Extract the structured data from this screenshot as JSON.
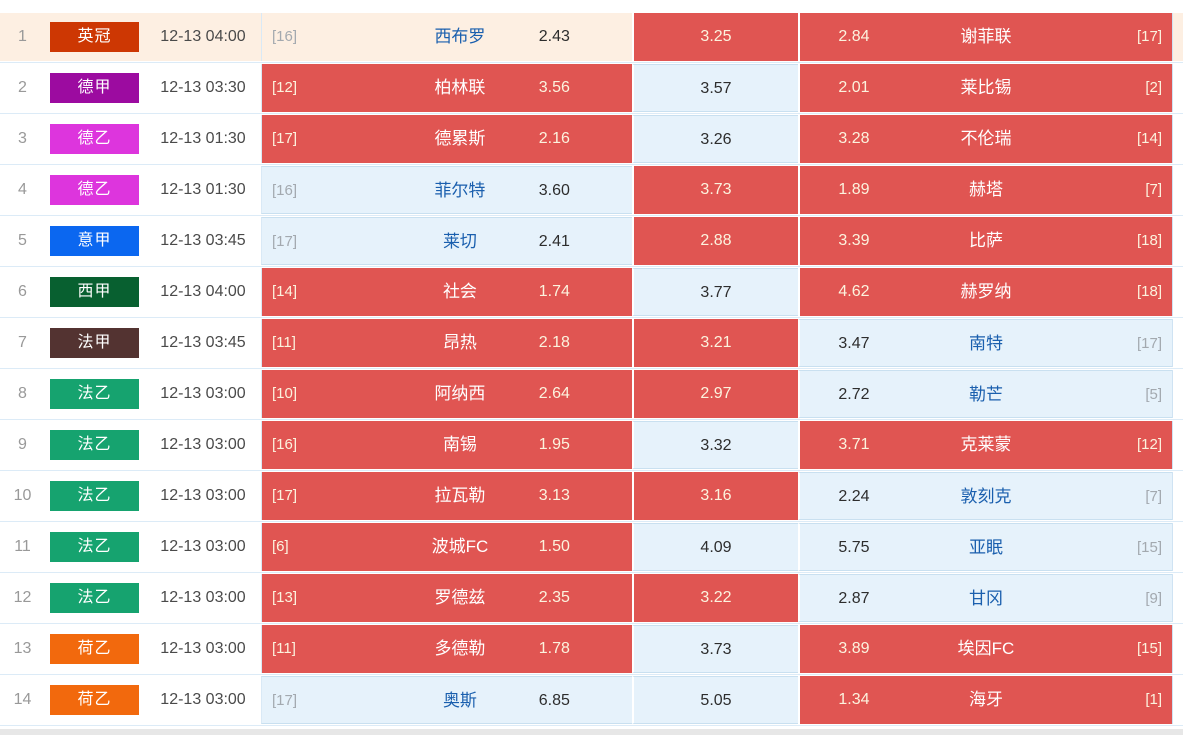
{
  "colors": {
    "cell_red": "#e05552",
    "cell_light_blue": "#e6f2fb",
    "row_highlight_cream": "#fdefe2",
    "team_link_blue": "#1a5fae",
    "text_on_red": "#fcf3de",
    "rank_gray": "#a3a9af",
    "separator_blue": "#dcebf7"
  },
  "table": {
    "rows": [
      {
        "num": "1",
        "league": "英冠",
        "league_color": "#cd3703",
        "time": "12-13 04:00",
        "highlight": true,
        "home": {
          "rank": "[16]",
          "team": "西布罗",
          "odds": "2.43",
          "style": "cream"
        },
        "draw": {
          "odds": "3.25",
          "style": "red"
        },
        "away": {
          "odds": "2.84",
          "team": "谢菲联",
          "rank": "[17]",
          "style": "red"
        }
      },
      {
        "num": "2",
        "league": "德甲",
        "league_color": "#9c0ba0",
        "time": "12-13 03:30",
        "highlight": false,
        "home": {
          "rank": "[12]",
          "team": "柏林联",
          "odds": "3.56",
          "style": "red"
        },
        "draw": {
          "odds": "3.57",
          "style": "light"
        },
        "away": {
          "odds": "2.01",
          "team": "莱比锡",
          "rank": "[2]",
          "style": "red"
        }
      },
      {
        "num": "3",
        "league": "德乙",
        "league_color": "#dd35dd",
        "time": "12-13 01:30",
        "highlight": false,
        "home": {
          "rank": "[17]",
          "team": "德累斯",
          "odds": "2.16",
          "style": "red"
        },
        "draw": {
          "odds": "3.26",
          "style": "light"
        },
        "away": {
          "odds": "3.28",
          "team": "不伦瑞",
          "rank": "[14]",
          "style": "red"
        }
      },
      {
        "num": "4",
        "league": "德乙",
        "league_color": "#dd35dd",
        "time": "12-13 01:30",
        "highlight": false,
        "home": {
          "rank": "[16]",
          "team": "菲尔特",
          "odds": "3.60",
          "style": "light"
        },
        "draw": {
          "odds": "3.73",
          "style": "red"
        },
        "away": {
          "odds": "1.89",
          "team": "赫塔",
          "rank": "[7]",
          "style": "red"
        }
      },
      {
        "num": "5",
        "league": "意甲",
        "league_color": "#0b67f0",
        "time": "12-13 03:45",
        "highlight": false,
        "home": {
          "rank": "[17]",
          "team": "莱切",
          "odds": "2.41",
          "style": "light"
        },
        "draw": {
          "odds": "2.88",
          "style": "red"
        },
        "away": {
          "odds": "3.39",
          "team": "比萨",
          "rank": "[18]",
          "style": "red"
        }
      },
      {
        "num": "6",
        "league": "西甲",
        "league_color": "#086030",
        "time": "12-13 04:00",
        "highlight": false,
        "home": {
          "rank": "[14]",
          "team": "社会",
          "odds": "1.74",
          "style": "red"
        },
        "draw": {
          "odds": "3.77",
          "style": "light"
        },
        "away": {
          "odds": "4.62",
          "team": "赫罗纳",
          "rank": "[18]",
          "style": "red"
        }
      },
      {
        "num": "7",
        "league": "法甲",
        "league_color": "#533331",
        "time": "12-13 03:45",
        "highlight": false,
        "home": {
          "rank": "[11]",
          "team": "昂热",
          "odds": "2.18",
          "style": "red"
        },
        "draw": {
          "odds": "3.21",
          "style": "red"
        },
        "away": {
          "odds": "3.47",
          "team": "南特",
          "rank": "[17]",
          "style": "light"
        }
      },
      {
        "num": "8",
        "league": "法乙",
        "league_color": "#16a36f",
        "time": "12-13 03:00",
        "highlight": false,
        "home": {
          "rank": "[10]",
          "team": "阿纳西",
          "odds": "2.64",
          "style": "red"
        },
        "draw": {
          "odds": "2.97",
          "style": "red"
        },
        "away": {
          "odds": "2.72",
          "team": "勒芒",
          "rank": "[5]",
          "style": "light"
        }
      },
      {
        "num": "9",
        "league": "法乙",
        "league_color": "#16a36f",
        "time": "12-13 03:00",
        "highlight": false,
        "home": {
          "rank": "[16]",
          "team": "南锡",
          "odds": "1.95",
          "style": "red"
        },
        "draw": {
          "odds": "3.32",
          "style": "light"
        },
        "away": {
          "odds": "3.71",
          "team": "克莱蒙",
          "rank": "[12]",
          "style": "red"
        }
      },
      {
        "num": "10",
        "league": "法乙",
        "league_color": "#16a36f",
        "time": "12-13 03:00",
        "highlight": false,
        "home": {
          "rank": "[17]",
          "team": "拉瓦勒",
          "odds": "3.13",
          "style": "red"
        },
        "draw": {
          "odds": "3.16",
          "style": "red"
        },
        "away": {
          "odds": "2.24",
          "team": "敦刻克",
          "rank": "[7]",
          "style": "light"
        }
      },
      {
        "num": "11",
        "league": "法乙",
        "league_color": "#16a36f",
        "time": "12-13 03:00",
        "highlight": false,
        "home": {
          "rank": "[6]",
          "team": "波城FC",
          "odds": "1.50",
          "style": "red"
        },
        "draw": {
          "odds": "4.09",
          "style": "light"
        },
        "away": {
          "odds": "5.75",
          "team": "亚眠",
          "rank": "[15]",
          "style": "light"
        }
      },
      {
        "num": "12",
        "league": "法乙",
        "league_color": "#16a36f",
        "time": "12-13 03:00",
        "highlight": false,
        "home": {
          "rank": "[13]",
          "team": "罗德兹",
          "odds": "2.35",
          "style": "red"
        },
        "draw": {
          "odds": "3.22",
          "style": "red"
        },
        "away": {
          "odds": "2.87",
          "team": "甘冈",
          "rank": "[9]",
          "style": "light"
        }
      },
      {
        "num": "13",
        "league": "荷乙",
        "league_color": "#f2690d",
        "time": "12-13 03:00",
        "highlight": false,
        "home": {
          "rank": "[11]",
          "team": "多德勒",
          "odds": "1.78",
          "style": "red"
        },
        "draw": {
          "odds": "3.73",
          "style": "light"
        },
        "away": {
          "odds": "3.89",
          "team": "埃因FC",
          "rank": "[15]",
          "style": "red"
        }
      },
      {
        "num": "14",
        "league": "荷乙",
        "league_color": "#f2690d",
        "time": "12-13 03:00",
        "highlight": false,
        "home": {
          "rank": "[17]",
          "team": "奥斯",
          "odds": "6.85",
          "style": "light"
        },
        "draw": {
          "odds": "5.05",
          "style": "light"
        },
        "away": {
          "odds": "1.34",
          "team": "海牙",
          "rank": "[1]",
          "style": "red"
        }
      }
    ]
  }
}
